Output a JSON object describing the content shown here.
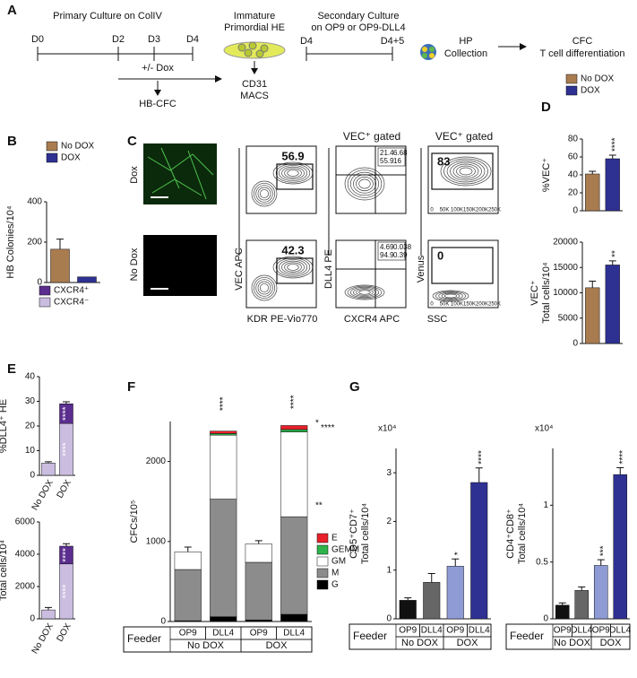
{
  "panel_labels": [
    "A",
    "B",
    "C",
    "D",
    "E",
    "F",
    "G"
  ],
  "timeline": {
    "primary": "Primary Culture on ColIV",
    "days": [
      "D0",
      "D2",
      "D3",
      "D4"
    ],
    "dox": "+/- Dox",
    "hbcfc": "HB-CFC",
    "he": [
      "Immature",
      "Primordial HE"
    ],
    "macs": [
      "CD31",
      "MACS"
    ],
    "secondary": [
      "Secondary Culture",
      "on OP9 or OP9-DLL4"
    ],
    "days2": [
      "D4",
      "D4+5"
    ],
    "hp": [
      "HP",
      "Collection"
    ],
    "cfc": [
      "CFC",
      "T cell differentiation"
    ]
  },
  "flow": {
    "rows": [
      "Dox",
      "No Dox"
    ],
    "kdr_y": "VEC APC",
    "kdr_x": "KDR PE-Vio770",
    "dll4_y": "DLL4 PE",
    "dll4_x": "CXCR4 APC",
    "venus_y": "Venus",
    "venus_x": "SSC",
    "gate_labels": [
      "VEC⁺ gated",
      "VEC⁺ gated"
    ],
    "gates": [
      "56.9",
      "42.3"
    ],
    "quadrants": [
      [
        "21.4",
        "6.68",
        "55.9",
        "16"
      ],
      [
        "4.69",
        "0.038",
        "94.9",
        "0.39"
      ]
    ],
    "venus": [
      "83",
      "0"
    ],
    "ssc_ticks": [
      "0",
      "50K",
      "100K",
      "150K",
      "200K",
      "250K"
    ]
  },
  "chart_data": [
    {
      "type": "bar",
      "ylabel": [
        "HB Colonies/10⁴"
      ],
      "categories": [
        "No DOX",
        "DOX"
      ],
      "colors": [
        "#a97c50",
        "#2e3192"
      ],
      "values": [
        165,
        28
      ],
      "errors": [
        50,
        0
      ],
      "ylim": [
        0,
        400
      ],
      "yticks": [
        0,
        200,
        400
      ],
      "legend": true
    },
    {
      "type": "bar",
      "ylabel": [
        "%VEC⁺"
      ],
      "categories": [
        "No DOX",
        "DOX"
      ],
      "colors": [
        "#a97c50",
        "#2e3192"
      ],
      "values": [
        41,
        58
      ],
      "errors": [
        3,
        4
      ],
      "ylim": [
        0,
        80
      ],
      "yticks": [
        0,
        20,
        40,
        60,
        80
      ],
      "legend": true,
      "significance": [
        null,
        "****"
      ]
    },
    {
      "type": "bar",
      "ylabel": [
        "VEC⁺",
        "Total cells/10⁴"
      ],
      "categories": [
        "No DOX",
        "DOX"
      ],
      "colors": [
        "#a97c50",
        "#2e3192"
      ],
      "values": [
        11000,
        15500
      ],
      "errors": [
        1300,
        800
      ],
      "ylim": [
        0,
        20000
      ],
      "yticks": [
        0,
        5000,
        10000,
        15000,
        20000
      ],
      "significance": [
        null,
        "**"
      ]
    },
    {
      "type": "stacked_bar",
      "ylabel": [
        "%DLL4⁺ HE"
      ],
      "categories": [
        "No DOX",
        "DOX"
      ],
      "legend": true,
      "series": [
        {
          "name": "CXCR4⁻",
          "color": "#cbbde0",
          "values": [
            5,
            21
          ],
          "significance": [
            null,
            "****"
          ]
        },
        {
          "name": "CXCR4⁺",
          "color": "#5b2d8e",
          "values": [
            0,
            8
          ],
          "errors": [
            0.5,
            0.8
          ],
          "significance": [
            null,
            "****"
          ]
        }
      ],
      "ylim": [
        0,
        40
      ],
      "yticks": [
        0,
        10,
        20,
        30,
        40
      ]
    },
    {
      "type": "stacked_bar",
      "ylabel": [
        "DLL4⁺ HE",
        "Total cells/10⁴"
      ],
      "categories": [
        "No DOX",
        "DOX"
      ],
      "series": [
        {
          "name": "CXCR4⁻",
          "color": "#cbbde0",
          "values": [
            550,
            3400
          ],
          "significance": [
            null,
            "****"
          ]
        },
        {
          "name": "CXCR4⁺",
          "color": "#5b2d8e",
          "values": [
            0,
            1100
          ],
          "errors": [
            150,
            150
          ],
          "significance": [
            null,
            "****"
          ]
        }
      ],
      "ylim": [
        0,
        6000
      ],
      "yticks": [
        0,
        2000,
        4000,
        6000
      ]
    },
    {
      "type": "stacked_bar",
      "ylabel": [
        "CFCs/10⁵"
      ],
      "categories": [
        "OP9",
        "DLL4",
        "OP9",
        "DLL4"
      ],
      "groups": [
        "No DOX",
        "DOX"
      ],
      "feeder": "Feeder",
      "legend": true,
      "series": [
        {
          "name": "G",
          "color": "#000000",
          "values": [
            10,
            60,
            20,
            90
          ]
        },
        {
          "name": "M",
          "color": "#8c8c8c",
          "values": [
            640,
            1470,
            720,
            1220
          ],
          "errors": [
            0,
            80,
            30,
            20
          ]
        },
        {
          "name": "GM",
          "color": "#ffffff",
          "values": [
            220,
            800,
            230,
            1060
          ],
          "errors": [
            60,
            20,
            40,
            20
          ]
        },
        {
          "name": "GEMM",
          "color": "#2db34a",
          "values": [
            0,
            20,
            0,
            30
          ]
        },
        {
          "name": "E",
          "color": "#e8202a",
          "values": [
            0,
            30,
            0,
            50
          ]
        }
      ],
      "ylim": [
        0,
        2500
      ],
      "yticks": [
        0,
        1000,
        2000
      ],
      "annotations": [
        "****",
        "****",
        "*",
        "****",
        "**"
      ]
    },
    {
      "type": "bar",
      "ylabel": [
        "CD5⁺CD7⁺",
        "Total cells/10⁴"
      ],
      "categories": [
        "OP9",
        "DLL4",
        "OP9",
        "DLL4"
      ],
      "groups": [
        "No DOX",
        "DOX"
      ],
      "feeder": "Feeder",
      "colors": [
        "#111111",
        "#666666",
        "#8e9bd4",
        "#2e3192"
      ],
      "values": [
        3800,
        7500,
        10800,
        28000
      ],
      "errors": [
        500,
        1800,
        1500,
        3000
      ],
      "ylim": [
        0,
        35000
      ],
      "yticks": [
        {
          "value": 0,
          "label": "0"
        },
        {
          "value": 10000,
          "label": "1"
        },
        {
          "value": 20000,
          "label": "2"
        },
        {
          "value": 30000,
          "label": "3"
        }
      ],
      "multiplier": "x10⁴",
      "significance": [
        null,
        null,
        "*",
        "****"
      ]
    },
    {
      "type": "bar",
      "ylabel": [
        "CD4⁺CD8⁺",
        "Total cells/10⁴"
      ],
      "categories": [
        "OP9",
        "DLL4",
        "OP9",
        "DLL4"
      ],
      "groups": [
        "No DOX",
        "DOX"
      ],
      "feeder": "Feeder",
      "colors": [
        "#111111",
        "#666666",
        "#8e9bd4",
        "#2e3192"
      ],
      "values": [
        1200,
        2500,
        4700,
        12700
      ],
      "errors": [
        200,
        300,
        500,
        600
      ],
      "ylim": [
        0,
        15000
      ],
      "yticks": [
        {
          "value": 0,
          "label": "0"
        },
        {
          "value": 5000,
          "label": "0.5"
        },
        {
          "value": 10000,
          "label": "1"
        }
      ],
      "multiplier": "x10⁴",
      "significance": [
        null,
        null,
        "***",
        "****"
      ]
    }
  ]
}
